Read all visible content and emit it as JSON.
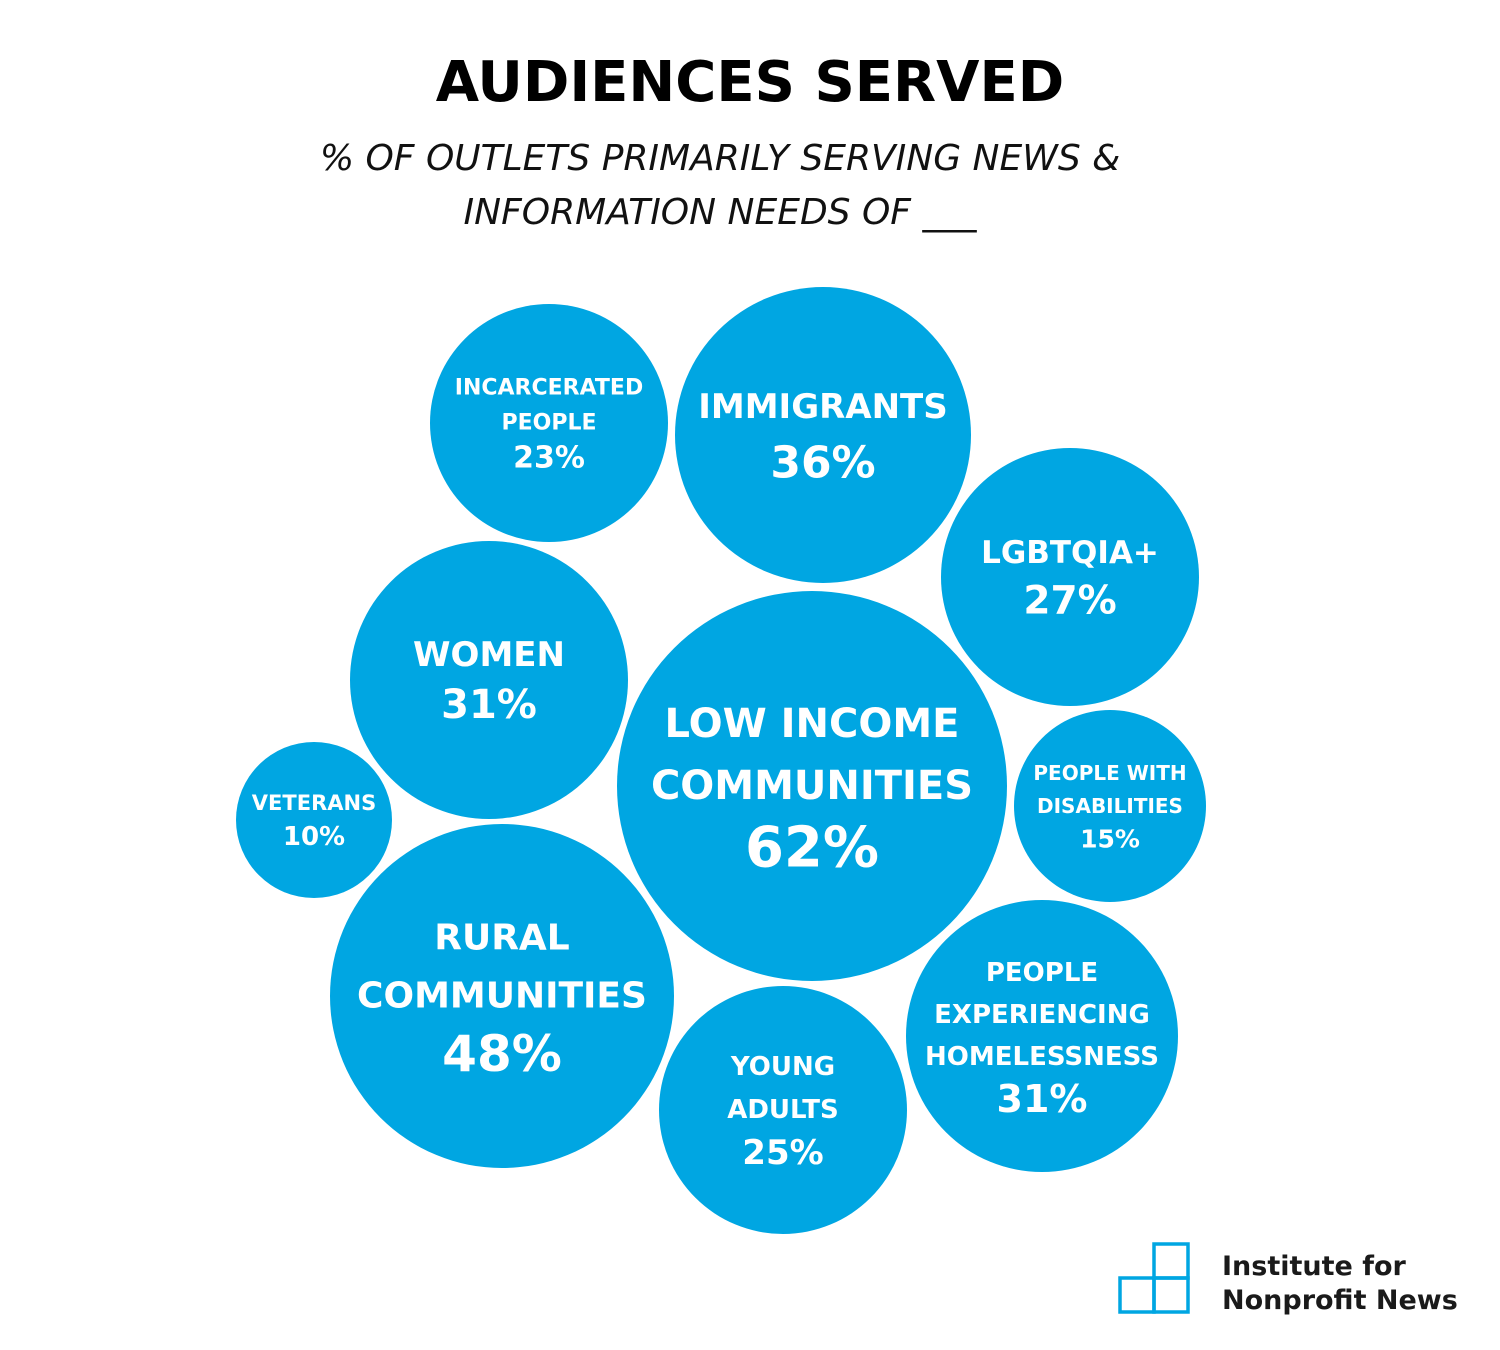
{
  "header": {
    "title": "AUDIENCES SERVED",
    "subtitle": "% OF OUTLETS PRIMARILY SERVING NEWS & INFORMATION NEEDS OF ___"
  },
  "colors": {
    "bubble": "#00A6E2",
    "label": "#FFFFFF",
    "logo": "#00A6E2"
  },
  "chart_data": {
    "type": "bubble",
    "title": "AUDIENCES SERVED",
    "subtitle": "% OF OUTLETS PRIMARILY SERVING NEWS & INFORMATION NEEDS OF ___",
    "unit": "%",
    "categories": [
      "INCARCERATED PEOPLE",
      "IMMIGRANTS",
      "LGBTQIA+",
      "WOMEN",
      "LOW INCOME COMMUNITIES",
      "VETERANS",
      "PEOPLE WITH DISABILITIES",
      "RURAL COMMUNITIES",
      "PEOPLE EXPERIENCING HOMELESSNESS",
      "YOUNG ADULTS"
    ],
    "values": [
      23,
      36,
      27,
      31,
      62,
      10,
      15,
      48,
      31,
      25
    ],
    "labels": [
      {
        "name_lines": [
          "INCARCERATED",
          "PEOPLE"
        ],
        "value_label": "23%"
      },
      {
        "name_lines": [
          "IMMIGRANTS"
        ],
        "value_label": "36%"
      },
      {
        "name_lines": [
          "LGBTQIA+"
        ],
        "value_label": "27%"
      },
      {
        "name_lines": [
          "WOMEN"
        ],
        "value_label": "31%"
      },
      {
        "name_lines": [
          "LOW INCOME",
          "COMMUNITIES"
        ],
        "value_label": "62%"
      },
      {
        "name_lines": [
          "VETERANS"
        ],
        "value_label": "10%"
      },
      {
        "name_lines": [
          "PEOPLE WITH",
          "DISABILITIES"
        ],
        "value_label": "15%"
      },
      {
        "name_lines": [
          "RURAL",
          "COMMUNITIES"
        ],
        "value_label": "48%"
      },
      {
        "name_lines": [
          "PEOPLE",
          "EXPERIENCING",
          "HOMELESSNESS"
        ],
        "value_label": "31%"
      },
      {
        "name_lines": [
          "YOUNG",
          "ADULTS"
        ],
        "value_label": "25%"
      }
    ]
  },
  "logo": {
    "line1": "Institute for",
    "line2": "Nonprofit News",
    "icon": "stacked-squares-icon"
  }
}
